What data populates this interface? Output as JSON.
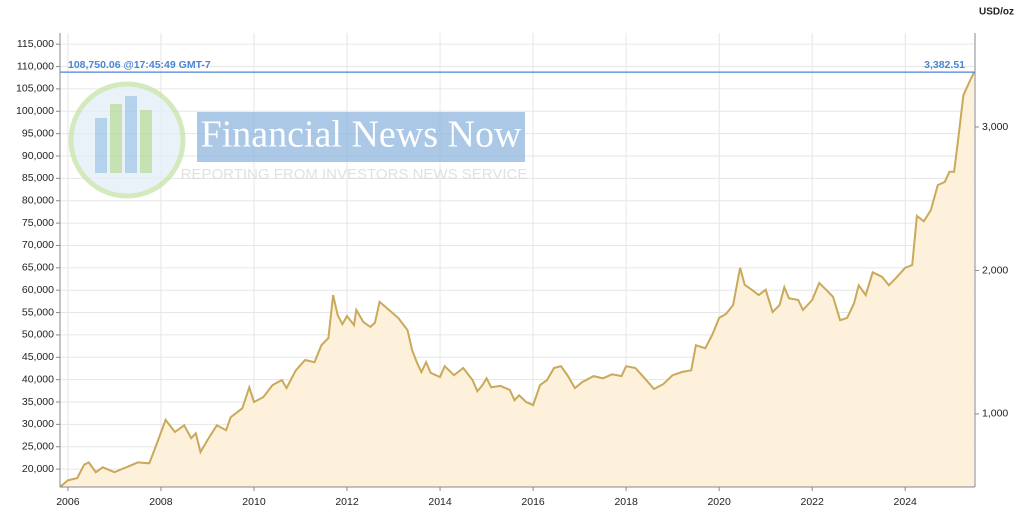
{
  "chart_data": {
    "type": "area",
    "x": [
      2005.83,
      2006.0,
      2006.2,
      2006.35,
      2006.45,
      2006.6,
      2006.75,
      2007.0,
      2007.3,
      2007.5,
      2007.75,
      2007.9,
      2008.1,
      2008.3,
      2008.5,
      2008.65,
      2008.75,
      2008.85,
      2009.0,
      2009.2,
      2009.4,
      2009.5,
      2009.75,
      2009.9,
      2010.0,
      2010.2,
      2010.4,
      2010.6,
      2010.7,
      2010.9,
      2011.1,
      2011.3,
      2011.45,
      2011.6,
      2011.7,
      2011.8,
      2011.9,
      2012.0,
      2012.15,
      2012.2,
      2012.35,
      2012.5,
      2012.6,
      2012.7,
      2012.9,
      2013.1,
      2013.3,
      2013.4,
      2013.5,
      2013.6,
      2013.7,
      2013.8,
      2014.0,
      2014.1,
      2014.3,
      2014.5,
      2014.7,
      2014.8,
      2014.9,
      2015.0,
      2015.1,
      2015.3,
      2015.5,
      2015.6,
      2015.7,
      2015.85,
      2016.0,
      2016.15,
      2016.3,
      2016.45,
      2016.6,
      2016.75,
      2016.9,
      2017.05,
      2017.3,
      2017.5,
      2017.7,
      2017.9,
      2018.0,
      2018.2,
      2018.4,
      2018.6,
      2018.8,
      2019.0,
      2019.2,
      2019.4,
      2019.5,
      2019.7,
      2019.85,
      2020.0,
      2020.15,
      2020.3,
      2020.45,
      2020.55,
      2020.7,
      2020.85,
      2021.0,
      2021.15,
      2021.3,
      2021.4,
      2021.5,
      2021.7,
      2021.8,
      2022.0,
      2022.15,
      2022.3,
      2022.45,
      2022.6,
      2022.75,
      2022.9,
      2023.0,
      2023.15,
      2023.3,
      2023.5,
      2023.65,
      2023.8,
      2024.0,
      2024.15,
      2024.25,
      2024.4,
      2024.55,
      2024.7,
      2024.85,
      2024.95,
      2025.05,
      2025.15,
      2025.25,
      2025.4,
      2025.48
    ],
    "values": [
      16000,
      17500,
      18000,
      21000,
      21500,
      19300,
      20400,
      19300,
      20600,
      21500,
      21300,
      25400,
      31000,
      28300,
      29800,
      26900,
      28000,
      23800,
      26500,
      29800,
      28700,
      31600,
      33600,
      38300,
      35000,
      36100,
      38800,
      39900,
      38100,
      42100,
      44400,
      43900,
      47700,
      49300,
      58900,
      54400,
      52400,
      54200,
      52200,
      55600,
      52900,
      51800,
      52700,
      57400,
      55600,
      53800,
      51100,
      46600,
      43900,
      41700,
      43900,
      41500,
      40600,
      43000,
      41000,
      42600,
      39900,
      37400,
      38600,
      40300,
      38300,
      38600,
      37700,
      35400,
      36500,
      35000,
      34300,
      38800,
      39900,
      42600,
      43000,
      40800,
      38100,
      39400,
      40800,
      40300,
      41200,
      40800,
      43000,
      42600,
      40300,
      37900,
      39000,
      41000,
      41700,
      42100,
      47700,
      47000,
      50000,
      53800,
      54700,
      56700,
      65000,
      61200,
      60100,
      58900,
      60100,
      55100,
      56700,
      60700,
      58200,
      57800,
      55600,
      57800,
      61600,
      60100,
      58500,
      53300,
      53800,
      57100,
      61100,
      58900,
      64000,
      63000,
      61100,
      62700,
      65000,
      65600,
      76600,
      75400,
      77900,
      83500,
      84200,
      86500,
      86500,
      94700,
      103600,
      107000,
      108750
    ],
    "color": "#c9a95a",
    "fill_color": "#fdf1db",
    "xlim": [
      2005.83,
      2025.5
    ],
    "xticks": [
      2006,
      2008,
      2010,
      2012,
      2014,
      2016,
      2018,
      2020,
      2022,
      2024
    ],
    "ylim": [
      16000,
      117500
    ],
    "yticks": [
      {
        "value": 20000,
        "label": "20,000"
      },
      {
        "value": 25000,
        "label": "25,000"
      },
      {
        "value": 30000,
        "label": "30,000"
      },
      {
        "value": 35000,
        "label": "35,000"
      },
      {
        "value": 40000,
        "label": "40,000"
      },
      {
        "value": 45000,
        "label": "45,000"
      },
      {
        "value": 50000,
        "label": "50,000"
      },
      {
        "value": 55000,
        "label": "55,000"
      },
      {
        "value": 60000,
        "label": "60,000"
      },
      {
        "value": 65000,
        "label": "65,000"
      },
      {
        "value": 70000,
        "label": "70,000"
      },
      {
        "value": 75000,
        "label": "75,000"
      },
      {
        "value": 80000,
        "label": "80,000"
      },
      {
        "value": 85000,
        "label": "85,000"
      },
      {
        "value": 90000,
        "label": "90,000"
      },
      {
        "value": 95000,
        "label": "95,000"
      },
      {
        "value": 100000,
        "label": "100,000"
      },
      {
        "value": 105000,
        "label": "105,000"
      },
      {
        "value": 110000,
        "label": "110,000"
      },
      {
        "value": 115000,
        "label": "115,000"
      }
    ],
    "y2lim": [
      491,
      3655
    ],
    "y2ticks": [
      {
        "value": 1000,
        "label": "1,000"
      },
      {
        "value": 2000,
        "label": "2,000"
      },
      {
        "value": 3000,
        "label": "3,000"
      }
    ],
    "y2_label": "USD/oz",
    "grid": true,
    "current": {
      "value": 108750.06,
      "label": "108,750.06 @17:45:49 GMT-7",
      "color": "#4a86d6"
    },
    "current_y2": {
      "value": 3382.51,
      "label": "3,382.51"
    },
    "watermark": {
      "title": "Financial News Now",
      "subtitle": "REPORTING FROM INVESTORS NEWS SERVICE"
    }
  }
}
